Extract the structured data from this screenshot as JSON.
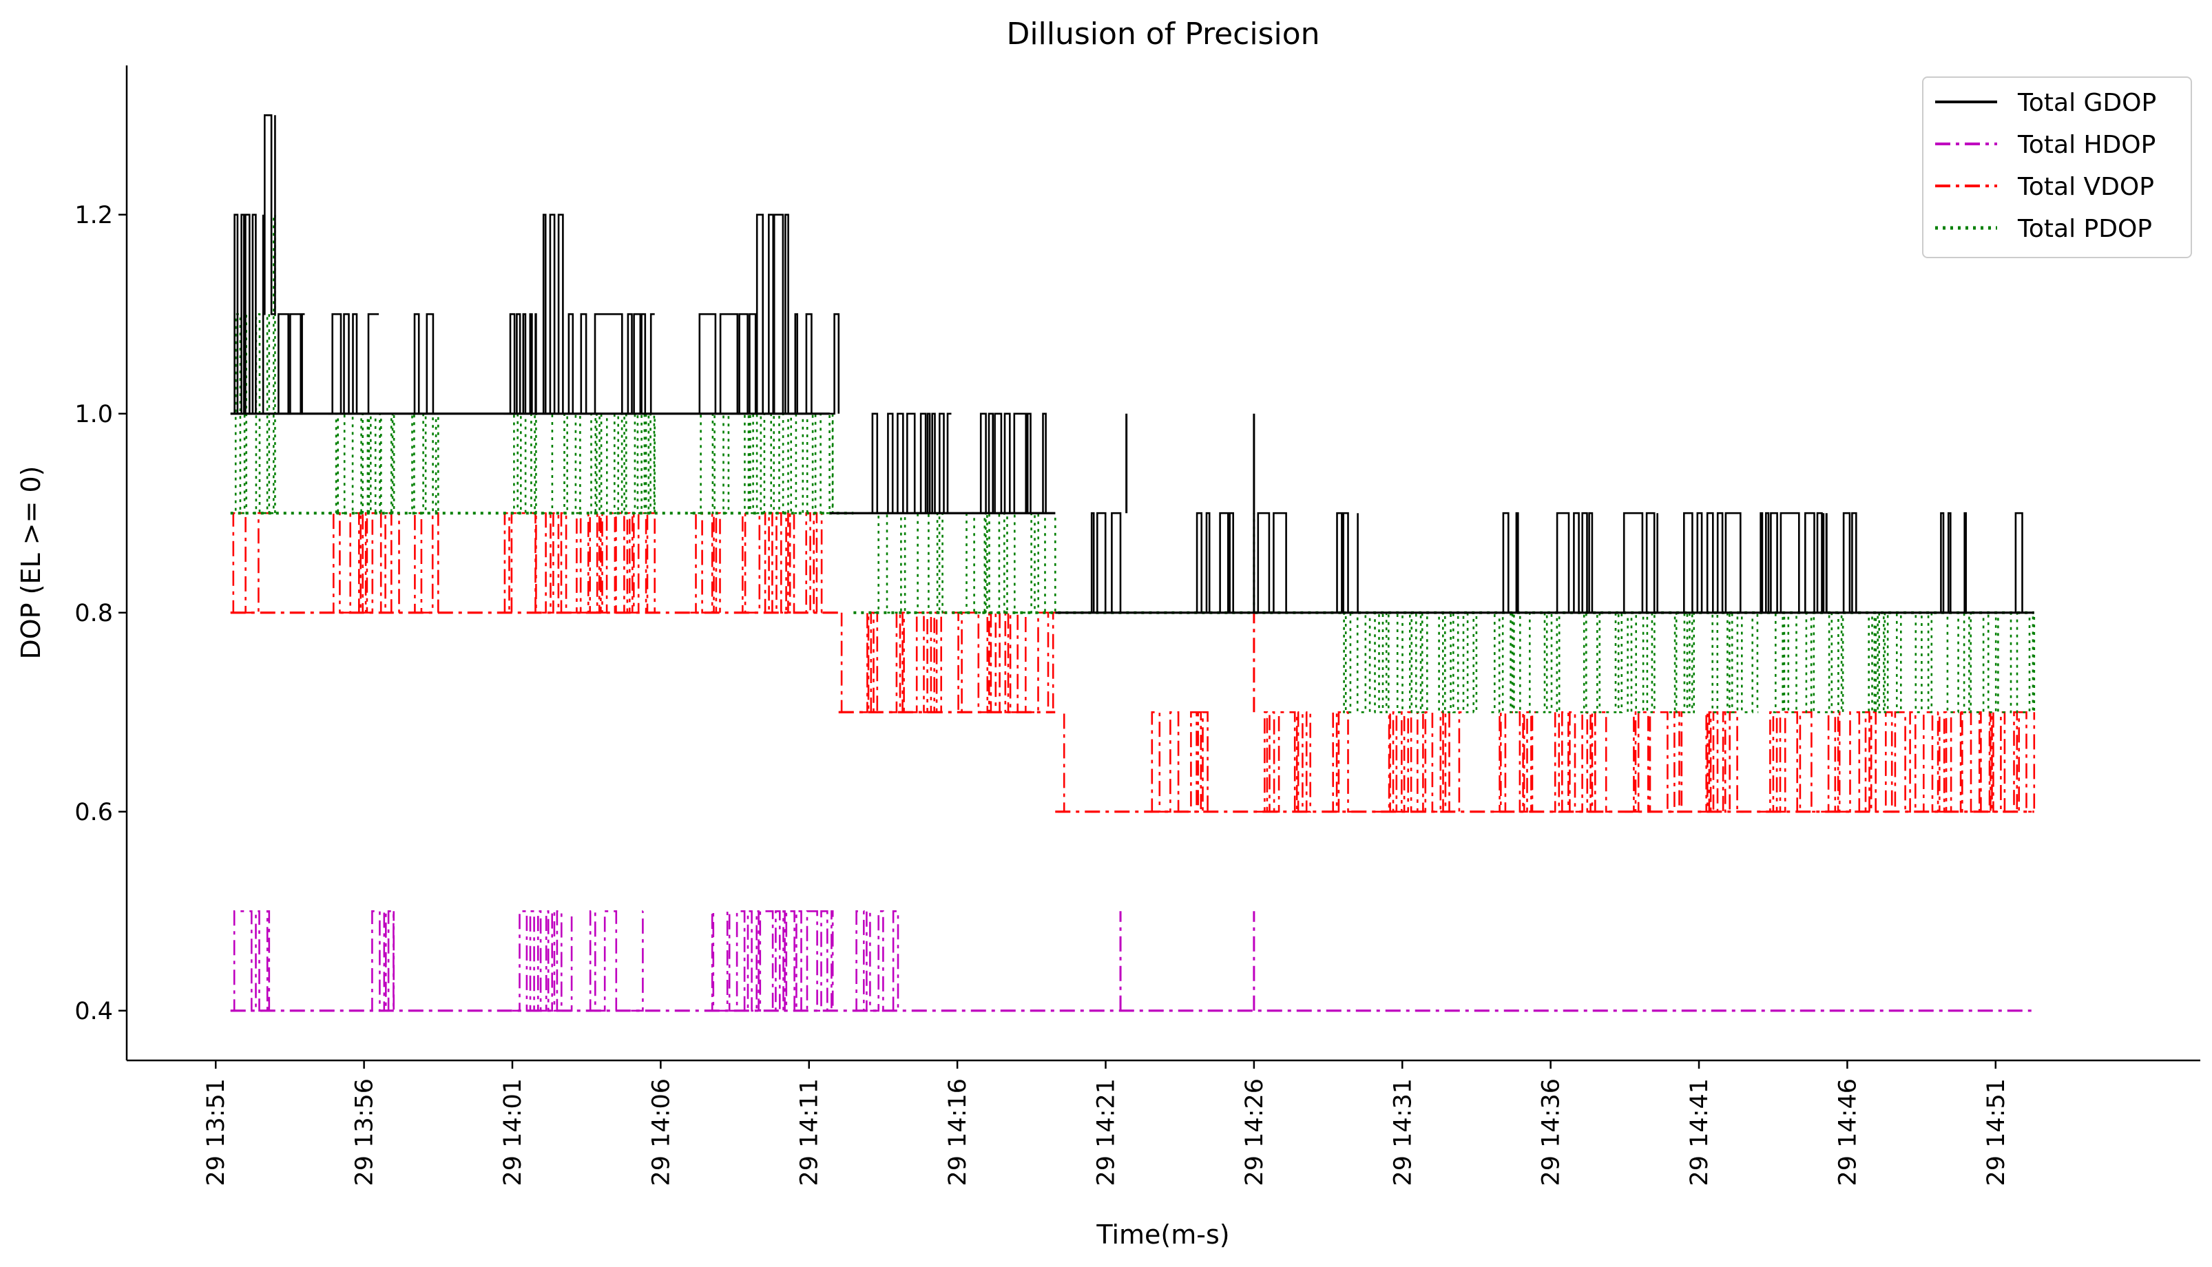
{
  "chart_data": {
    "type": "line",
    "title": "Dillusion of Precision",
    "xlabel": "Time(m-s)",
    "ylabel": "DOP (EL >= 0)",
    "ylim": [
      0.35,
      1.35
    ],
    "yticks": [
      0.4,
      0.6,
      0.8,
      1.0,
      1.2
    ],
    "ytick_labels": [
      "0.4",
      "0.6",
      "0.8",
      "1.0",
      "1.2"
    ],
    "xlim_minutes": [
      -3.0,
      66.9
    ],
    "xticks_minutes": [
      0,
      5,
      10,
      15,
      20,
      25,
      30,
      35,
      40,
      45,
      50,
      55,
      60
    ],
    "xtick_labels": [
      "29 13:51",
      "29 13:56",
      "29 14:01",
      "29 14:06",
      "29 14:11",
      "29 14:16",
      "29 14:21",
      "29 14:26",
      "29 14:31",
      "29 14:36",
      "29 14:41",
      "29 14:46",
      "29 14:51"
    ],
    "legend_position": "top-right",
    "grid": false,
    "series": [
      {
        "name": "Total GDOP",
        "color": "#000000",
        "style": "solid",
        "low": 1.0,
        "high": 1.1,
        "segments": [
          {
            "t0": 0.5,
            "t1": 1.6,
            "low": 1.0,
            "high": 1.2
          },
          {
            "t0": 1.6,
            "t1": 2.0,
            "low": 1.1,
            "high": 1.3
          },
          {
            "t0": 2.0,
            "t1": 3.0,
            "low": 1.0,
            "high": 1.1
          },
          {
            "t0": 3.8,
            "t1": 5.5,
            "low": 1.0,
            "high": 1.1
          },
          {
            "t0": 6.5,
            "t1": 7.5,
            "low": 1.0,
            "high": 1.1
          },
          {
            "t0": 9.7,
            "t1": 10.8,
            "low": 1.0,
            "high": 1.1
          },
          {
            "t0": 11.0,
            "t1": 11.8,
            "low": 1.0,
            "high": 1.2
          },
          {
            "t0": 11.8,
            "t1": 14.8,
            "low": 1.0,
            "high": 1.1
          },
          {
            "t0": 16.0,
            "t1": 18.2,
            "low": 1.0,
            "high": 1.1
          },
          {
            "t0": 18.2,
            "t1": 19.3,
            "low": 1.0,
            "high": 1.2
          },
          {
            "t0": 19.3,
            "t1": 21.0,
            "low": 1.0,
            "high": 1.1
          },
          {
            "t0": 22.0,
            "t1": 23.2,
            "low": 0.9,
            "high": 1.0
          },
          {
            "t0": 23.2,
            "t1": 24.8,
            "low": 0.9,
            "high": 1.0
          },
          {
            "t0": 25.5,
            "t1": 28.3,
            "low": 0.9,
            "high": 1.0
          },
          {
            "t0": 29.2,
            "t1": 30.5,
            "low": 0.8,
            "high": 0.9
          },
          {
            "t0": 33.0,
            "t1": 34.3,
            "low": 0.8,
            "high": 0.9
          },
          {
            "t0": 35.0,
            "t1": 36.1,
            "low": 0.8,
            "high": 0.9
          },
          {
            "t0": 37.5,
            "t1": 38.5,
            "low": 0.8,
            "high": 0.9
          },
          {
            "t0": 43.3,
            "t1": 43.9,
            "low": 0.8,
            "high": 0.9
          },
          {
            "t0": 45.0,
            "t1": 46.4,
            "low": 0.8,
            "high": 0.9
          },
          {
            "t0": 47.3,
            "t1": 48.6,
            "low": 0.8,
            "high": 0.9
          },
          {
            "t0": 49.3,
            "t1": 51.4,
            "low": 0.8,
            "high": 0.9
          },
          {
            "t0": 52.0,
            "t1": 54.2,
            "low": 0.8,
            "high": 0.9
          },
          {
            "t0": 54.5,
            "t1": 55.5,
            "low": 0.8,
            "high": 0.9
          },
          {
            "t0": 58.0,
            "t1": 59.0,
            "low": 0.8,
            "high": 0.9
          },
          {
            "t0": 60.3,
            "t1": 60.9,
            "low": 0.8,
            "high": 0.9
          }
        ],
        "spikes": [
          {
            "t": 30.7,
            "low": 0.9,
            "high": 1.0
          },
          {
            "t": 35.0,
            "low": 0.8,
            "high": 1.0
          },
          {
            "t": 54.3,
            "low": 0.8,
            "high": 0.9
          }
        ],
        "steps": [
          {
            "t0": 0.5,
            "t1": 20.7,
            "v": 1.0
          },
          {
            "t0": 20.7,
            "t1": 28.3,
            "v": 0.9
          },
          {
            "t0": 28.3,
            "t1": 61.3,
            "v": 0.8
          }
        ]
      },
      {
        "name": "Total HDOP",
        "color": "#bf00bf",
        "style": "dashdot",
        "segments": [
          {
            "t0": 0.5,
            "t1": 1.8,
            "low": 0.4,
            "high": 0.5
          },
          {
            "t0": 5.2,
            "t1": 6.0,
            "low": 0.4,
            "high": 0.5
          },
          {
            "t0": 10.0,
            "t1": 12.0,
            "low": 0.4,
            "high": 0.5
          },
          {
            "t0": 12.5,
            "t1": 13.5,
            "low": 0.4,
            "high": 0.5
          },
          {
            "t0": 14.0,
            "t1": 14.4,
            "low": 0.4,
            "high": 0.5
          },
          {
            "t0": 16.5,
            "t1": 20.8,
            "low": 0.4,
            "high": 0.5
          },
          {
            "t0": 21.5,
            "t1": 22.5,
            "low": 0.4,
            "high": 0.5
          },
          {
            "t0": 22.8,
            "t1": 23.0,
            "low": 0.4,
            "high": 0.5
          }
        ],
        "spikes": [
          {
            "t": 30.5,
            "low": 0.4,
            "high": 0.5
          },
          {
            "t": 35.0,
            "low": 0.4,
            "high": 0.5
          }
        ],
        "steps": [
          {
            "t0": 0.5,
            "t1": 61.3,
            "v": 0.4
          }
        ]
      },
      {
        "name": "Total VDOP",
        "color": "#ff0000",
        "style": "dashdot",
        "segments": [
          {
            "t0": 0.5,
            "t1": 1.8,
            "low": 0.8,
            "high": 0.9
          },
          {
            "t0": 3.8,
            "t1": 6.2,
            "low": 0.8,
            "high": 0.9
          },
          {
            "t0": 6.5,
            "t1": 7.5,
            "low": 0.8,
            "high": 0.9
          },
          {
            "t0": 9.7,
            "t1": 10.8,
            "low": 0.8,
            "high": 0.9
          },
          {
            "t0": 11.0,
            "t1": 14.8,
            "low": 0.8,
            "high": 0.9
          },
          {
            "t0": 16.0,
            "t1": 17.0,
            "low": 0.8,
            "high": 0.9
          },
          {
            "t0": 17.5,
            "t1": 20.5,
            "low": 0.8,
            "high": 0.9
          },
          {
            "t0": 21.0,
            "t1": 21.1,
            "low": 0.7,
            "high": 0.8
          },
          {
            "t0": 21.8,
            "t1": 22.3,
            "low": 0.7,
            "high": 0.8
          },
          {
            "t0": 22.8,
            "t1": 28.3,
            "low": 0.7,
            "high": 0.8
          },
          {
            "t0": 28.4,
            "t1": 28.6,
            "low": 0.6,
            "high": 0.7
          },
          {
            "t0": 29.5,
            "t1": 29.7,
            "low": 0.6,
            "high": 0.7
          },
          {
            "t0": 31.5,
            "t1": 33.5,
            "low": 0.6,
            "high": 0.7
          },
          {
            "t0": 35.0,
            "t1": 37.0,
            "low": 0.6,
            "high": 0.7
          },
          {
            "t0": 37.5,
            "t1": 38.3,
            "low": 0.6,
            "high": 0.7
          },
          {
            "t0": 39.0,
            "t1": 42.0,
            "low": 0.6,
            "high": 0.7
          },
          {
            "t0": 43.0,
            "t1": 44.5,
            "low": 0.6,
            "high": 0.7
          },
          {
            "t0": 45.0,
            "t1": 47.0,
            "low": 0.6,
            "high": 0.7
          },
          {
            "t0": 47.5,
            "t1": 49.5,
            "low": 0.6,
            "high": 0.7
          },
          {
            "t0": 50.0,
            "t1": 51.5,
            "low": 0.6,
            "high": 0.7
          },
          {
            "t0": 52.0,
            "t1": 61.3,
            "low": 0.6,
            "high": 0.7
          }
        ],
        "spikes": [
          {
            "t": 35.0,
            "low": 0.7,
            "high": 0.8
          }
        ],
        "steps": [
          {
            "t0": 0.5,
            "t1": 21.0,
            "v": 0.8
          },
          {
            "t0": 21.0,
            "t1": 28.3,
            "v": 0.7
          },
          {
            "t0": 28.3,
            "t1": 61.3,
            "v": 0.6
          }
        ]
      },
      {
        "name": "Total PDOP",
        "color": "#007f00",
        "style": "dotted",
        "segments": [
          {
            "t0": 0.5,
            "t1": 1.8,
            "low": 0.9,
            "high": 1.1
          },
          {
            "t0": 1.6,
            "t1": 2.0,
            "low": 0.9,
            "high": 1.2
          },
          {
            "t0": 3.8,
            "t1": 6.2,
            "low": 0.9,
            "high": 1.0
          },
          {
            "t0": 6.5,
            "t1": 7.5,
            "low": 0.9,
            "high": 1.0
          },
          {
            "t0": 9.7,
            "t1": 10.8,
            "low": 0.9,
            "high": 1.0
          },
          {
            "t0": 11.0,
            "t1": 14.8,
            "low": 0.9,
            "high": 1.0
          },
          {
            "t0": 16.0,
            "t1": 20.8,
            "low": 0.9,
            "high": 1.0
          },
          {
            "t0": 22.2,
            "t1": 24.5,
            "low": 0.8,
            "high": 0.9
          },
          {
            "t0": 25.0,
            "t1": 28.3,
            "low": 0.8,
            "high": 0.9
          },
          {
            "t0": 38.0,
            "t1": 42.5,
            "low": 0.7,
            "high": 0.8
          },
          {
            "t0": 43.0,
            "t1": 45.5,
            "low": 0.7,
            "high": 0.8
          },
          {
            "t0": 46.0,
            "t1": 48.5,
            "low": 0.7,
            "high": 0.8
          },
          {
            "t0": 49.0,
            "t1": 52.0,
            "low": 0.7,
            "high": 0.8
          },
          {
            "t0": 52.5,
            "t1": 55.0,
            "low": 0.7,
            "high": 0.8
          },
          {
            "t0": 55.5,
            "t1": 61.3,
            "low": 0.7,
            "high": 0.8
          }
        ],
        "spikes": [
          {
            "t": 35.0,
            "low": 0.8,
            "high": 0.9
          }
        ],
        "steps": [
          {
            "t0": 0.5,
            "t1": 21.5,
            "v": 0.9
          },
          {
            "t0": 21.5,
            "t1": 38.0,
            "v": 0.8
          },
          {
            "t0": 38.0,
            "t1": 61.3,
            "v": 0.8
          }
        ]
      }
    ]
  }
}
